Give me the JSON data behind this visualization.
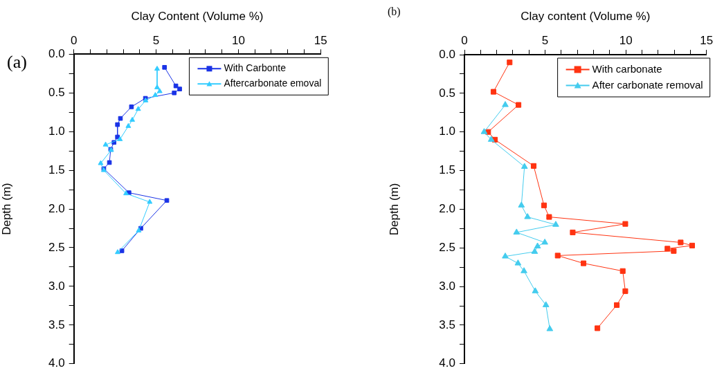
{
  "chart_data": [
    {
      "type": "line",
      "title": "(a)",
      "xlabel": "Clay Content (Volume %)",
      "ylabel": "Depth (m)",
      "legend": "top right",
      "xlim": [
        0,
        15
      ],
      "xticks": [
        0,
        {
          "value": 1,
          "label": null
        },
        {
          "value": 2,
          "label": null
        },
        {
          "value": 3,
          "label": null
        },
        {
          "value": 4,
          "label": null
        },
        5,
        {
          "value": 6,
          "label": null
        },
        {
          "value": 7,
          "label": null
        },
        {
          "value": 8,
          "label": null
        },
        {
          "value": 9,
          "label": null
        },
        10,
        {
          "value": 11,
          "label": null
        },
        {
          "value": 12,
          "label": null
        },
        {
          "value": 13,
          "label": null
        },
        {
          "value": 14,
          "label": null
        },
        15
      ],
      "ylim": [
        4,
        0
      ],
      "yticks": [
        {
          "value": 0,
          "label": "0.0"
        },
        {
          "value": 0.25,
          "label": null
        },
        {
          "value": 0.5,
          "label": "0.5"
        },
        {
          "value": 0.75,
          "label": null
        },
        {
          "value": 1,
          "label": "1.0"
        },
        {
          "value": 1.25,
          "label": null
        },
        {
          "value": 1.5,
          "label": "1.5"
        },
        {
          "value": 1.75,
          "label": null
        },
        {
          "value": 2,
          "label": "2.0"
        },
        {
          "value": 2.25,
          "label": null
        },
        {
          "value": 2.5,
          "label": "2.5"
        },
        {
          "value": 2.75,
          "label": null
        },
        {
          "value": 3,
          "label": "3.0"
        },
        {
          "value": 3.25,
          "label": null
        },
        {
          "value": 3.5,
          "label": "3.5"
        },
        {
          "value": 3.75,
          "label": null
        },
        {
          "value": 4,
          "label": "4.0"
        }
      ],
      "series": [
        {
          "name": "With Carbonte",
          "color": "#1a33e6",
          "marker": "square",
          "x": [
            5.51,
            6.2,
            6.43,
            6.1,
            4.35,
            3.5,
            2.83,
            2.65,
            2.65,
            2.44,
            2.24,
            2.16,
            1.82,
            3.35,
            5.65,
            4.07,
            2.92
          ],
          "values": [
            0.17,
            0.41,
            0.45,
            0.5,
            0.57,
            0.68,
            0.83,
            0.91,
            1.07,
            1.14,
            1.23,
            1.4,
            1.48,
            1.79,
            1.89,
            2.25,
            2.54
          ]
        },
        {
          "name": "Aftercarbonate emoval",
          "color": "#33ccff",
          "marker": "triangle",
          "x": [
            5.06,
            5.06,
            5.22,
            4.95,
            4.36,
            3.91,
            3.55,
            3.31,
            2.8,
            1.93,
            2.27,
            1.63,
            1.82,
            3.17,
            4.61,
            3.94,
            2.66
          ],
          "values": [
            0.19,
            0.43,
            0.48,
            0.53,
            0.6,
            0.71,
            0.85,
            0.93,
            1.1,
            1.17,
            1.24,
            1.41,
            1.5,
            1.8,
            1.91,
            2.28,
            2.56
          ]
        }
      ]
    },
    {
      "type": "line",
      "title": "(b)",
      "xlabel": "Clay content (Volume %)",
      "ylabel": "Depth (m)",
      "legend": "top right",
      "xlim": [
        0,
        15
      ],
      "xticks": [
        0,
        {
          "value": 1,
          "label": null
        },
        {
          "value": 2,
          "label": null
        },
        {
          "value": 3,
          "label": null
        },
        {
          "value": 4,
          "label": null
        },
        5,
        {
          "value": 6,
          "label": null
        },
        {
          "value": 7,
          "label": null
        },
        {
          "value": 8,
          "label": null
        },
        {
          "value": 9,
          "label": null
        },
        10,
        {
          "value": 11,
          "label": null
        },
        {
          "value": 12,
          "label": null
        },
        {
          "value": 13,
          "label": null
        },
        {
          "value": 14,
          "label": null
        },
        15
      ],
      "ylim": [
        4,
        0
      ],
      "yticks": [
        {
          "value": 0,
          "label": "0.0"
        },
        {
          "value": 0.25,
          "label": null
        },
        {
          "value": 0.5,
          "label": "0.5"
        },
        {
          "value": 0.75,
          "label": null
        },
        {
          "value": 1,
          "label": "1.0"
        },
        {
          "value": 1.25,
          "label": null
        },
        {
          "value": 1.5,
          "label": "1.5"
        },
        {
          "value": 1.75,
          "label": null
        },
        {
          "value": 2,
          "label": "2.0"
        },
        {
          "value": 2.25,
          "label": null
        },
        {
          "value": 2.5,
          "label": "2.5"
        },
        {
          "value": 2.75,
          "label": null
        },
        {
          "value": 3,
          "label": "3.0"
        },
        {
          "value": 3.25,
          "label": null
        },
        {
          "value": 3.5,
          "label": "3.5"
        },
        {
          "value": 3.75,
          "label": null
        },
        {
          "value": 4,
          "label": "4.0"
        }
      ],
      "series": [
        {
          "name": "With carbonate",
          "color": "#ff3311",
          "marker": "square",
          "x": [
            2.8,
            1.8,
            3.35,
            1.47,
            1.89,
            4.29,
            4.93,
            5.25,
            9.97,
            6.71,
            13.4,
            14.11,
            12.58,
            12.97,
            5.78,
            7.38,
            9.81,
            9.97,
            9.44,
            8.24
          ],
          "values": [
            0.1,
            0.48,
            0.65,
            1.0,
            1.1,
            1.44,
            1.95,
            2.1,
            2.19,
            2.3,
            2.43,
            2.47,
            2.51,
            2.54,
            2.6,
            2.7,
            2.8,
            3.06,
            3.24,
            3.54
          ]
        },
        {
          "name": "After carbonate removal",
          "color": "#44ccee",
          "marker": "triangle",
          "x": [
            null,
            null,
            2.53,
            1.22,
            1.66,
            3.72,
            3.53,
            3.91,
            5.66,
            3.23,
            4.98,
            4.53,
            4.35,
            2.53,
            3.32,
            3.69,
            4.39,
            5.05,
            5.29
          ],
          "values": [
            null,
            null,
            0.65,
            1.0,
            1.1,
            1.45,
            1.95,
            2.1,
            2.2,
            2.3,
            2.43,
            2.48,
            2.55,
            2.61,
            2.7,
            2.8,
            3.06,
            3.24,
            3.55
          ]
        }
      ]
    }
  ]
}
